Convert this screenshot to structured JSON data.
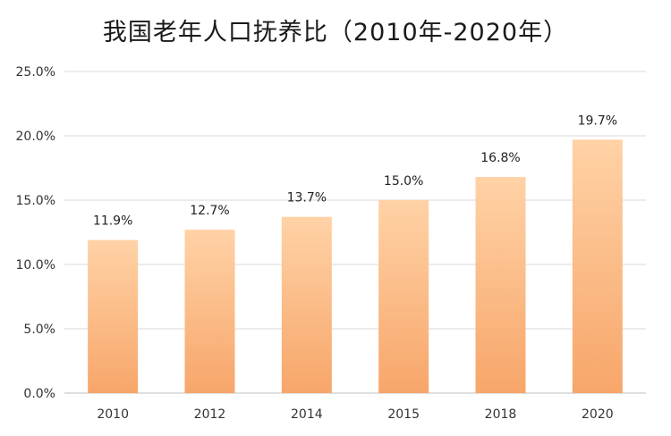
{
  "chart_data": {
    "type": "bar",
    "title": "我国老年人口抚养比（2010年-2020年）",
    "categories": [
      "2010",
      "2012",
      "2014",
      "2015",
      "2018",
      "2020"
    ],
    "values": [
      11.9,
      12.7,
      13.7,
      15.0,
      16.8,
      19.7
    ],
    "data_labels": [
      "11.9%",
      "12.7%",
      "13.7%",
      "15.0%",
      "16.8%",
      "19.7%"
    ],
    "ylim": [
      0,
      25
    ],
    "yticks": [
      0,
      5,
      10,
      15,
      20,
      25
    ],
    "ytick_labels": [
      "0.0%",
      "5.0%",
      "10.0%",
      "15.0%",
      "20.0%",
      "25.0%"
    ],
    "xlabel": "",
    "ylabel": "",
    "grid": true,
    "colors": {
      "bar_top": "#FFD2A6",
      "bar_bottom": "#F7A66A",
      "grid": "#D9D9D9",
      "axis": "#BFBFBF"
    }
  }
}
